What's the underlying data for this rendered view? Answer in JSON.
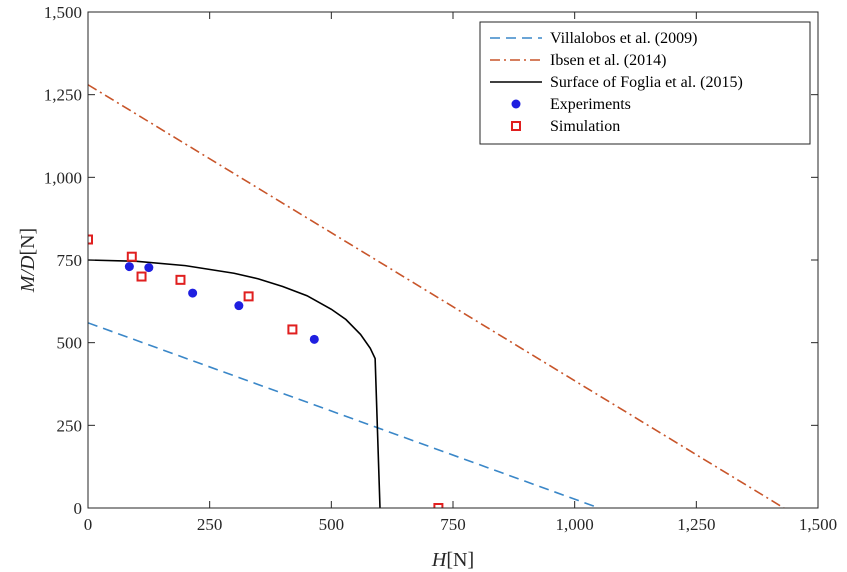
{
  "chart_data": {
    "type": "scatter",
    "title": "",
    "xlabel": {
      "var": "H",
      "unit": "[N]"
    },
    "ylabel": {
      "var": "M/D",
      "unit": "[N]"
    },
    "xlim": [
      0,
      1500
    ],
    "ylim": [
      0,
      1500
    ],
    "x_ticks": [
      {
        "value": 0,
        "label": "0"
      },
      {
        "value": 250,
        "label": "250"
      },
      {
        "value": 500,
        "label": "500"
      },
      {
        "value": 750,
        "label": "750"
      },
      {
        "value": 1000,
        "label": "1,000"
      },
      {
        "value": 1250,
        "label": "1,250"
      },
      {
        "value": 1500,
        "label": "1,500"
      }
    ],
    "y_ticks": [
      {
        "value": 0,
        "label": "0"
      },
      {
        "value": 250,
        "label": "250"
      },
      {
        "value": 500,
        "label": "500"
      },
      {
        "value": 750,
        "label": "750"
      },
      {
        "value": 1000,
        "label": "1,000"
      },
      {
        "value": 1250,
        "label": "1,250"
      },
      {
        "value": 1500,
        "label": "1,500"
      }
    ],
    "grid": false,
    "legend_position": "top-right",
    "series": [
      {
        "name": "Villalobos et al. (2009)",
        "kind": "line",
        "style": "dashed",
        "color": "#3a87c8",
        "x": [
          0,
          1050
        ],
        "y": [
          560,
          0
        ]
      },
      {
        "name": "Ibsen et al. (2014)",
        "kind": "line",
        "style": "dashdot",
        "color": "#c8552a",
        "x": [
          0,
          1430
        ],
        "y": [
          1280,
          0
        ]
      },
      {
        "name": "Surface of Foglia et al. (2015)",
        "kind": "curve",
        "style": "solid",
        "color": "#000000",
        "x": [
          0,
          100,
          200,
          300,
          350,
          400,
          450,
          500,
          530,
          560,
          580,
          590,
          600
        ],
        "y": [
          750,
          746,
          733,
          710,
          693,
          670,
          642,
          601,
          570,
          525,
          483,
          452,
          0
        ]
      },
      {
        "name": "Experiments",
        "kind": "scatter",
        "marker": "filled-circle",
        "color": "#1f1fe0",
        "x": [
          85,
          125,
          215,
          310,
          465
        ],
        "y": [
          730,
          727,
          650,
          612,
          510
        ]
      },
      {
        "name": "Simulation",
        "kind": "scatter",
        "marker": "open-square",
        "color": "#e01f1f",
        "x": [
          0,
          90,
          110,
          190,
          330,
          420,
          720
        ],
        "y": [
          812,
          760,
          700,
          690,
          640,
          540,
          0
        ]
      }
    ]
  }
}
